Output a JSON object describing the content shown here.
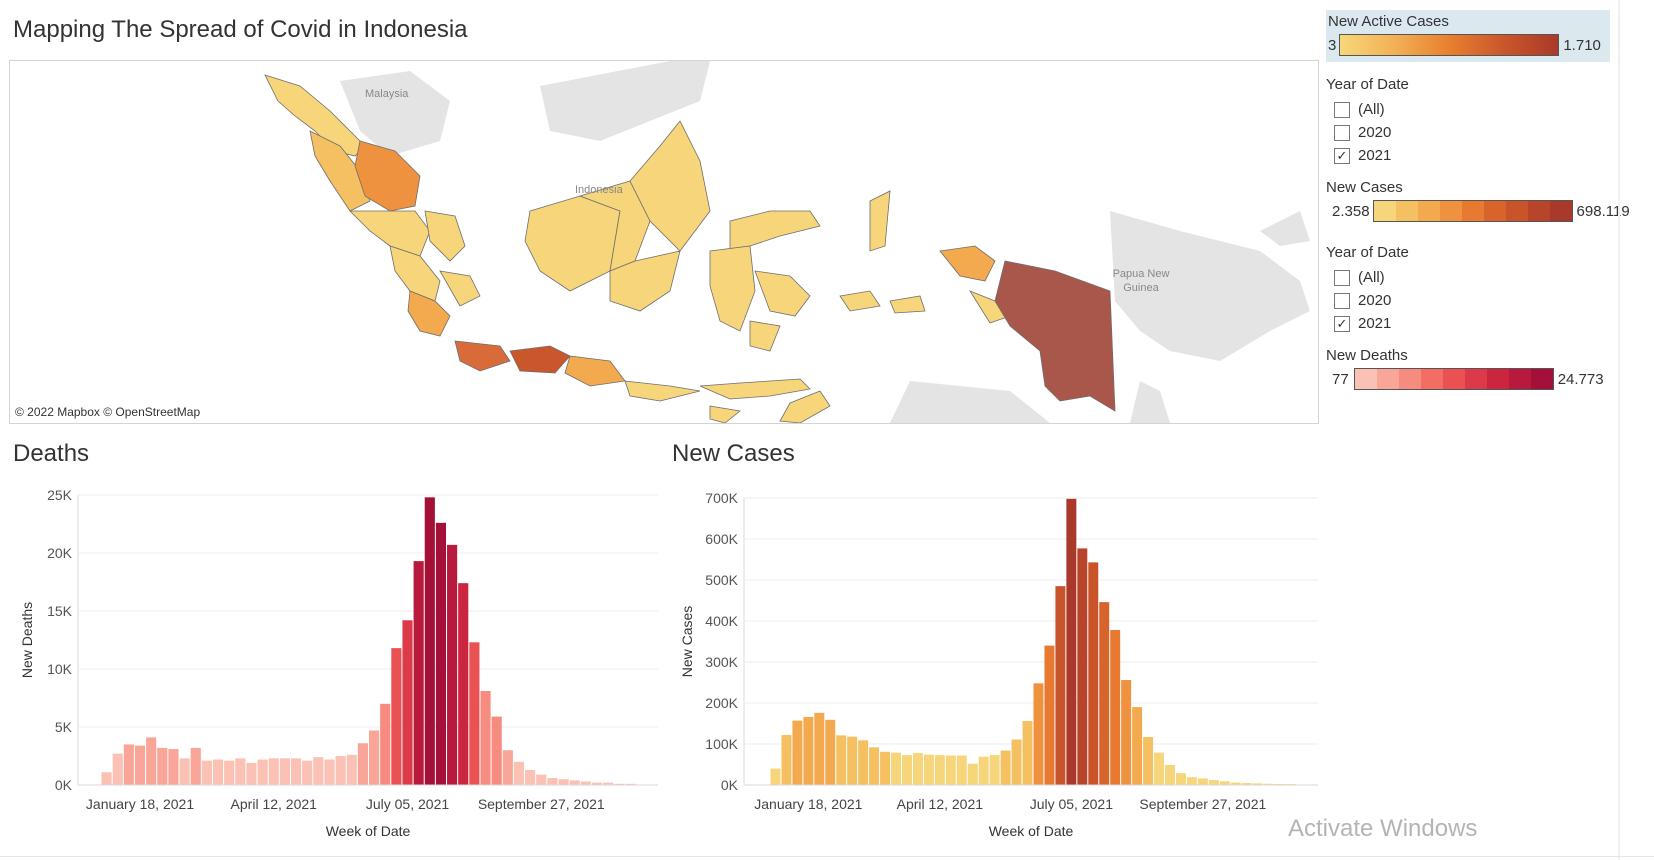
{
  "dashboard": {
    "title": "Mapping The Spread of Covid in Indonesia"
  },
  "map": {
    "attribution": "© 2022 Mapbox © OpenStreetMap",
    "labels": {
      "malaysia": "Malaysia",
      "indonesia": "Indonesia",
      "png": "Papua New Guinea"
    },
    "colors": {
      "land_other": "#e4e4e4",
      "low": "#f7d77a",
      "mid": "#f2a44f",
      "high": "#d96b3a",
      "max": "#a9574a"
    }
  },
  "legends": {
    "active_cases": {
      "title": "New Active Cases",
      "min": "3",
      "max": "1.710"
    },
    "new_cases": {
      "title": "New Cases",
      "min": "2.358",
      "max": "698.119",
      "colors": [
        "#f7d57a",
        "#f5c062",
        "#f3a94d",
        "#ee923f",
        "#e77a30",
        "#d9642b",
        "#c9542a",
        "#b8452a",
        "#a8392b"
      ]
    },
    "new_deaths": {
      "title": "New Deaths",
      "min": "77",
      "max": "24.773",
      "colors": [
        "#fbc1b4",
        "#f9a699",
        "#f68c80",
        "#f26e65",
        "#ea5152",
        "#dc3a48",
        "#cc2540",
        "#b81a3d",
        "#a51038"
      ]
    }
  },
  "filters": [
    {
      "title": "Year of Date",
      "options": [
        {
          "label": "(All)",
          "checked": false
        },
        {
          "label": "2020",
          "checked": false
        },
        {
          "label": "2021",
          "checked": true
        }
      ]
    },
    {
      "title": "Year of Date",
      "options": [
        {
          "label": "(All)",
          "checked": false
        },
        {
          "label": "2020",
          "checked": false
        },
        {
          "label": "2021",
          "checked": true
        }
      ]
    }
  ],
  "watermark": "Activate Windows",
  "chart_data": [
    {
      "type": "bar",
      "title": "Deaths",
      "xlabel": "Week of Date",
      "ylabel": "New Deaths",
      "ylim": [
        0,
        25000
      ],
      "yticks": [
        0,
        5000,
        10000,
        15000,
        20000,
        25000
      ],
      "ytick_labels": [
        "0K",
        "5K",
        "10K",
        "15K",
        "20K",
        "25K"
      ],
      "xtick_labels": [
        {
          "label": "January 18, 2021",
          "index": 3
        },
        {
          "label": "April 12, 2021",
          "index": 15
        },
        {
          "label": "July 05, 2021",
          "index": 27
        },
        {
          "label": "September 27, 2021",
          "index": 39
        }
      ],
      "x_start": "January 04, 2021",
      "grid": true,
      "values": [
        1100,
        2700,
        3500,
        3400,
        4100,
        3200,
        3100,
        2300,
        3200,
        2100,
        2200,
        2100,
        2300,
        1900,
        2200,
        2300,
        2300,
        2300,
        2100,
        2400,
        2200,
        2500,
        2600,
        3600,
        4700,
        7000,
        11800,
        14200,
        19300,
        24800,
        22600,
        20700,
        17400,
        12300,
        8100,
        5900,
        3000,
        2000,
        1300,
        900,
        600,
        500,
        400,
        300,
        200,
        200,
        100,
        100
      ],
      "color_scale": [
        "#fbc1b4",
        "#f9a699",
        "#f68c80",
        "#f26e65",
        "#ea5152",
        "#dc3a48",
        "#cc2540",
        "#b81a3d",
        "#a51038"
      ],
      "color_min": 77,
      "color_max": 24773
    },
    {
      "type": "bar",
      "title": "New Cases",
      "xlabel": "Week of Date",
      "ylabel": "New Cases",
      "ylim": [
        0,
        700000
      ],
      "yticks": [
        0,
        100000,
        200000,
        300000,
        400000,
        500000,
        600000,
        700000
      ],
      "ytick_labels": [
        "0K",
        "100K",
        "200K",
        "300K",
        "400K",
        "500K",
        "600K",
        "700K"
      ],
      "xtick_labels": [
        {
          "label": "January 18, 2021",
          "index": 3
        },
        {
          "label": "April 12, 2021",
          "index": 15
        },
        {
          "label": "July 05, 2021",
          "index": 27
        },
        {
          "label": "September 27, 2021",
          "index": 39
        }
      ],
      "x_start": "January 04, 2021",
      "grid": true,
      "values": [
        40000,
        122000,
        157000,
        166000,
        176000,
        159000,
        121000,
        118000,
        109000,
        92000,
        81000,
        79000,
        73000,
        78000,
        74000,
        73000,
        72000,
        72000,
        52000,
        69000,
        73000,
        84000,
        111000,
        156000,
        248000,
        340000,
        485000,
        698000,
        577000,
        543000,
        446000,
        378000,
        256000,
        190000,
        117000,
        79000,
        49000,
        29000,
        19000,
        16000,
        12000,
        9000,
        6000,
        5000,
        4000,
        3000,
        2500,
        2358
      ],
      "color_scale": [
        "#f7d57a",
        "#f5c062",
        "#f3a94d",
        "#ee923f",
        "#e77a30",
        "#d9642b",
        "#c9542a",
        "#b8452a",
        "#a8392b"
      ],
      "color_min": 2358,
      "color_max": 698119
    }
  ]
}
